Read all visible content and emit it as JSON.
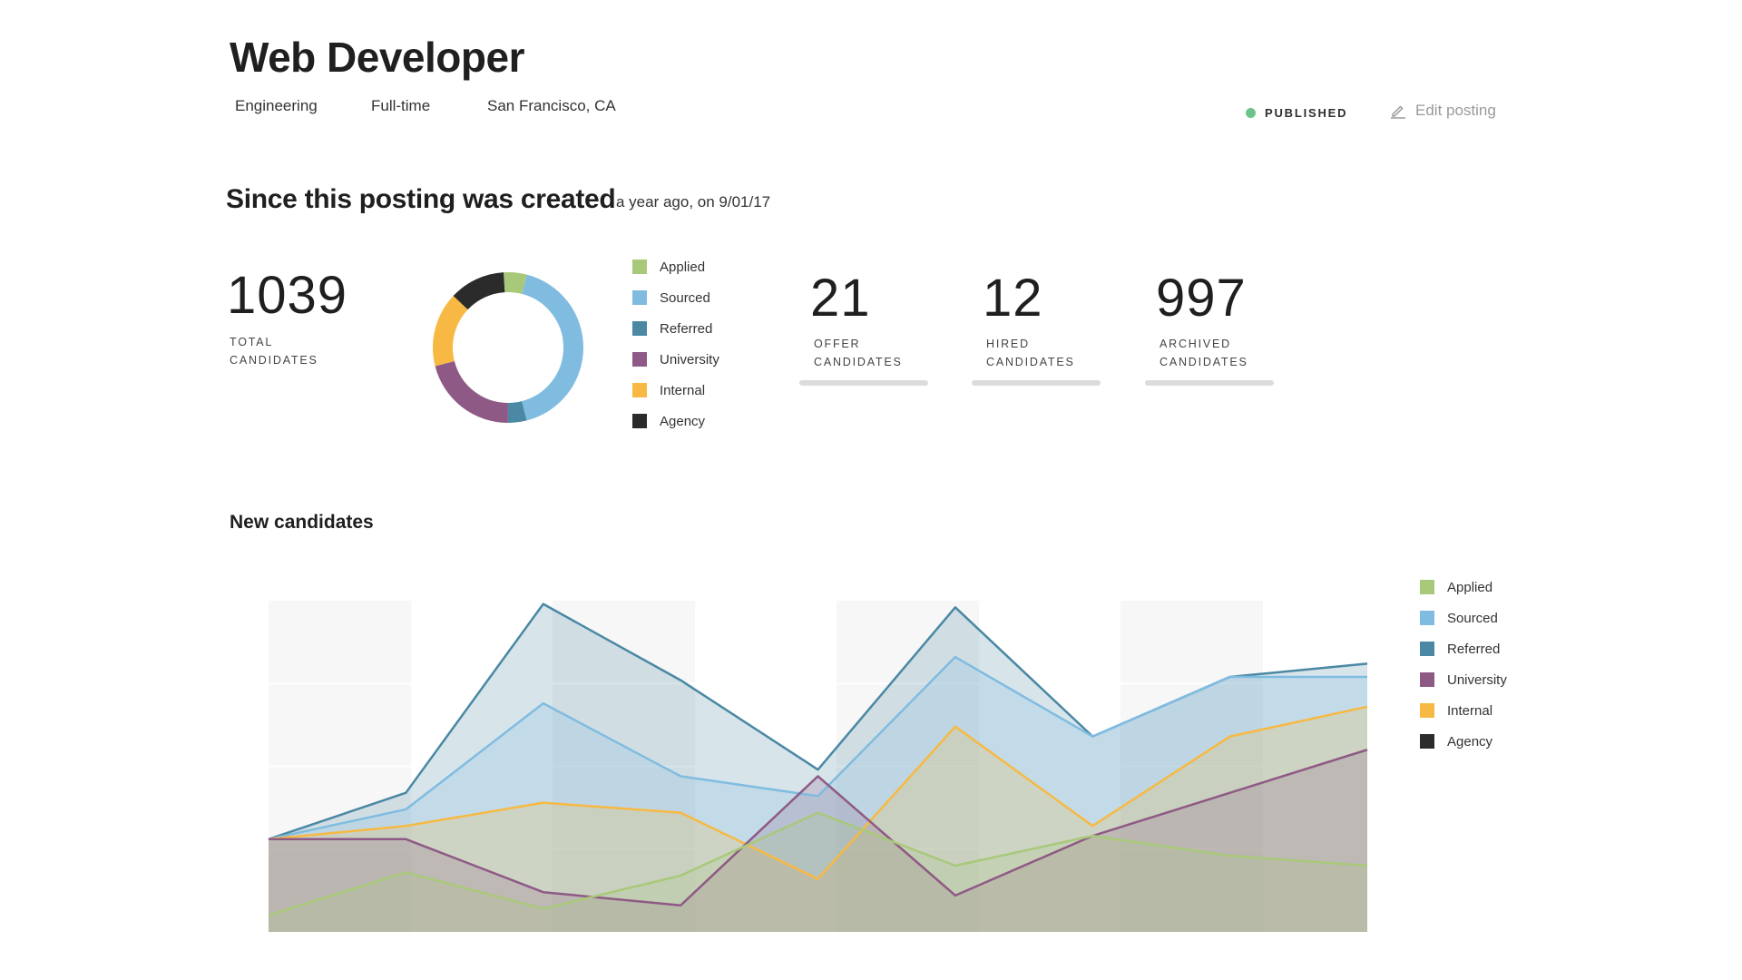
{
  "job": {
    "title": "Web Developer",
    "department": "Engineering",
    "type": "Full-time",
    "location": "San Francisco, CA",
    "status": "PUBLISHED",
    "status_color": "#6cc48a",
    "edit_label": "Edit posting",
    "edit_icon": "pencil-icon"
  },
  "summary": {
    "title": "Since this posting was created",
    "subtitle": "a year ago, on 9/01/17",
    "total": {
      "value": "1039",
      "label_line1": "TOTAL",
      "label_line2": "CANDIDATES"
    },
    "stats": [
      {
        "value": "21",
        "label_line1": "OFFER",
        "label_line2": "CANDIDATES"
      },
      {
        "value": "12",
        "label_line1": "HIRED",
        "label_line2": "CANDIDATES"
      },
      {
        "value": "997",
        "label_line1": "ARCHIVED",
        "label_line2": "CANDIDATES"
      }
    ]
  },
  "sources": [
    {
      "name": "Applied",
      "color": "#a8c97a"
    },
    {
      "name": "Sourced",
      "color": "#80bce0"
    },
    {
      "name": "Referred",
      "color": "#4a88a3"
    },
    {
      "name": "University",
      "color": "#8e5a85"
    },
    {
      "name": "Internal",
      "color": "#f7b943"
    },
    {
      "name": "Agency",
      "color": "#2b2b2b"
    }
  ],
  "chart_data": [
    {
      "type": "pie",
      "title": "",
      "labels": [
        "Applied",
        "Sourced",
        "Referred",
        "University",
        "Internal",
        "Agency"
      ],
      "values": [
        5,
        42,
        4,
        21,
        16,
        12
      ]
    },
    {
      "type": "area",
      "title": "New candidates",
      "xlabel": "",
      "ylabel": "",
      "ylim": [
        0,
        100
      ],
      "grid": true,
      "legend": "right",
      "x": [
        1,
        2,
        3,
        4,
        5,
        6,
        7,
        8,
        9
      ],
      "series": [
        {
          "name": "Applied",
          "values": [
            5,
            18,
            7,
            17,
            36,
            20,
            29,
            23,
            20
          ]
        },
        {
          "name": "Sourced",
          "values": [
            28,
            37,
            69,
            47,
            41,
            83,
            59,
            77,
            77
          ]
        },
        {
          "name": "Referred",
          "values": [
            28,
            42,
            99,
            76,
            49,
            98,
            59,
            77,
            81
          ]
        },
        {
          "name": "University",
          "values": [
            28,
            28,
            12,
            8,
            47,
            11,
            29,
            42,
            55
          ]
        },
        {
          "name": "Internal",
          "values": [
            28,
            32,
            39,
            36,
            16,
            62,
            32,
            59,
            68
          ]
        },
        {
          "name": "Agency",
          "values": [
            0,
            0,
            0,
            0,
            0,
            0,
            0,
            0,
            0
          ]
        }
      ]
    }
  ]
}
